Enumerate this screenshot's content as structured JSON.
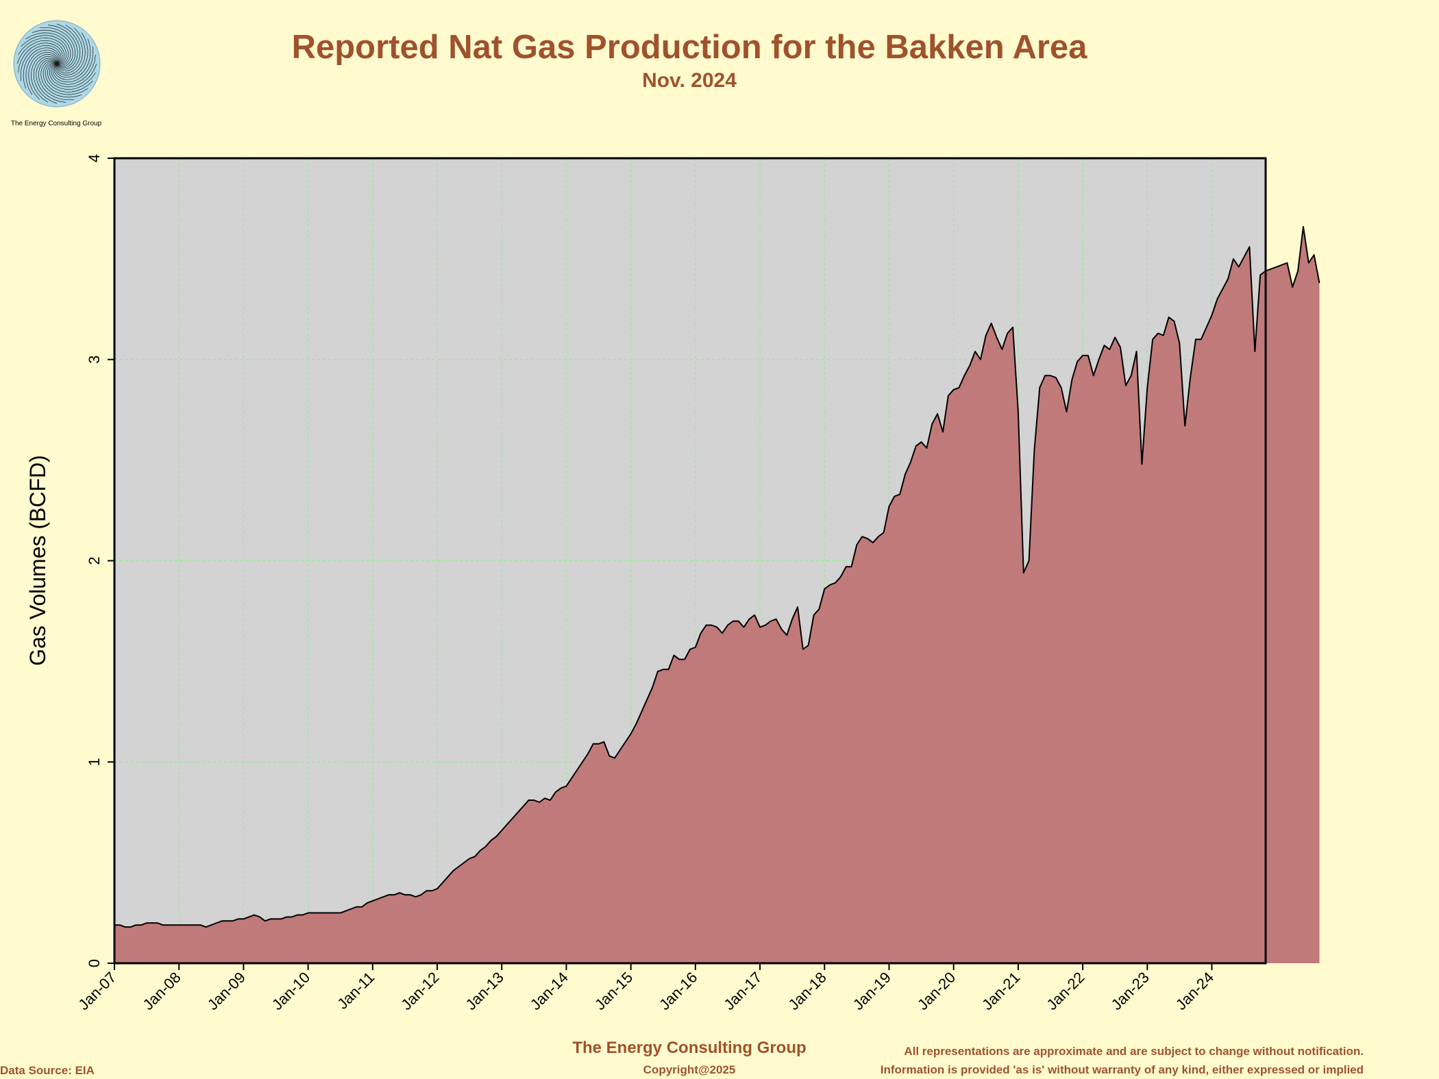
{
  "header": {
    "title": "Reported Nat Gas Production for the Bakken Area",
    "subtitle": "Nov. 2024",
    "logo_caption": "The Energy Consulting Group"
  },
  "footer": {
    "company": "The Energy Consulting Group",
    "copyright": "Copyright@2025",
    "data_source": "Data Source: EIA",
    "disclaimer_1": "All representations are approximate and are subject to change without notification.",
    "disclaimer_2": "Information is provided 'as is' without warranty of any kind, either expressed or implied"
  },
  "colors": {
    "background": "#FFFBCF",
    "plot_background": "#D3D3D3",
    "area_fill": "#C07A7A",
    "grid": "#90EE90",
    "title": "#A0522D"
  },
  "chart_data": {
    "type": "area",
    "title": "Reported Nat Gas Production for the Bakken Area",
    "subtitle": "Nov. 2024",
    "ylabel": "Gas Volumes (BCFD)",
    "xlabel": "",
    "ylim": [
      0,
      4
    ],
    "yticks": [
      0,
      1,
      2,
      3,
      4
    ],
    "xticks": [
      "Jan-07",
      "Jan-08",
      "Jan-09",
      "Jan-10",
      "Jan-11",
      "Jan-12",
      "Jan-13",
      "Jan-14",
      "Jan-15",
      "Jan-16",
      "Jan-17",
      "Jan-18",
      "Jan-19",
      "Jan-20",
      "Jan-21",
      "Jan-22",
      "Jan-23",
      "Jan-24"
    ],
    "x_start": "Jan-07",
    "x_end": "Nov-24",
    "grid": true,
    "series": [
      {
        "values": [
          0.19,
          0.19,
          0.18,
          0.18,
          0.19,
          0.19,
          0.2,
          0.2,
          0.2,
          0.19,
          0.19,
          0.19,
          0.19,
          0.19,
          0.19,
          0.19,
          0.19,
          0.18,
          0.19,
          0.2,
          0.21,
          0.21,
          0.21,
          0.22,
          0.22,
          0.23,
          0.24,
          0.23,
          0.21,
          0.22,
          0.22,
          0.22,
          0.23,
          0.23,
          0.24,
          0.24,
          0.25,
          0.25,
          0.25,
          0.25,
          0.25,
          0.25,
          0.25,
          0.26,
          0.27,
          0.28,
          0.28,
          0.3,
          0.31,
          0.32,
          0.33,
          0.34,
          0.34,
          0.35,
          0.34,
          0.34,
          0.33,
          0.34,
          0.36,
          0.36,
          0.37,
          0.4,
          0.43,
          0.46,
          0.48,
          0.5,
          0.52,
          0.53,
          0.56,
          0.58,
          0.61,
          0.63,
          0.66,
          0.69,
          0.72,
          0.75,
          0.78,
          0.81,
          0.81,
          0.8,
          0.82,
          0.81,
          0.85,
          0.87,
          0.88,
          0.92,
          0.96,
          1.0,
          1.04,
          1.09,
          1.09,
          1.1,
          1.03,
          1.02,
          1.06,
          1.1,
          1.14,
          1.19,
          1.25,
          1.31,
          1.37,
          1.45,
          1.46,
          1.46,
          1.53,
          1.51,
          1.51,
          1.56,
          1.57,
          1.64,
          1.68,
          1.68,
          1.67,
          1.64,
          1.68,
          1.7,
          1.7,
          1.67,
          1.71,
          1.73,
          1.67,
          1.68,
          1.7,
          1.71,
          1.66,
          1.63,
          1.71,
          1.77,
          1.56,
          1.58,
          1.73,
          1.76,
          1.86,
          1.88,
          1.89,
          1.92,
          1.97,
          1.97,
          2.08,
          2.12,
          2.11,
          2.09,
          2.12,
          2.14,
          2.27,
          2.32,
          2.33,
          2.43,
          2.49,
          2.57,
          2.59,
          2.56,
          2.68,
          2.73,
          2.64,
          2.82,
          2.85,
          2.86,
          2.92,
          2.97,
          3.04,
          3.0,
          3.12,
          3.18,
          3.11,
          3.05,
          3.13,
          3.16,
          2.74,
          1.94,
          2.0,
          2.55,
          2.86,
          2.92,
          2.92,
          2.91,
          2.86,
          2.74,
          2.9,
          2.99,
          3.02,
          3.02,
          2.92,
          3.0,
          3.07,
          3.05,
          3.11,
          3.06,
          2.87,
          2.92,
          3.04,
          2.48,
          2.86,
          3.1,
          3.13,
          3.12,
          3.21,
          3.19,
          3.08,
          2.67,
          2.91,
          3.1,
          3.1,
          3.16,
          3.22,
          3.3,
          3.35,
          3.4,
          3.5,
          3.46,
          3.51,
          3.56,
          3.04,
          3.42,
          3.44,
          3.45,
          3.46,
          3.47,
          3.48,
          3.36,
          3.44,
          3.66,
          3.48,
          3.52,
          3.38
        ]
      }
    ]
  }
}
